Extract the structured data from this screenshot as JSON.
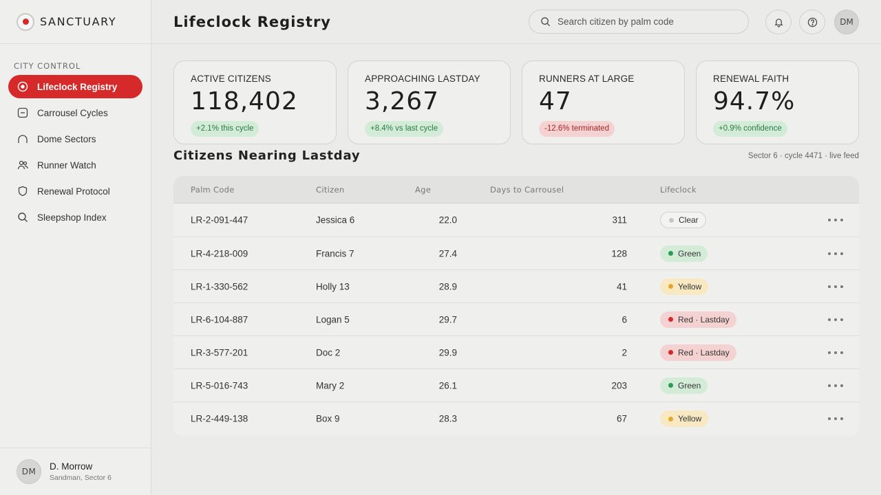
{
  "brand": {
    "name": "SANCTUARY"
  },
  "sidebar": {
    "section_label": "CITY CONTROL",
    "items": [
      {
        "label": "Lifeclock Registry",
        "icon": "target-icon",
        "active": true
      },
      {
        "label": "Carrousel Cycles",
        "icon": "minus-square-icon",
        "active": false
      },
      {
        "label": "Dome Sectors",
        "icon": "dome-icon",
        "active": false
      },
      {
        "label": "Runner Watch",
        "icon": "users-icon",
        "active": false
      },
      {
        "label": "Renewal Protocol",
        "icon": "shield-icon",
        "active": false
      },
      {
        "label": "Sleepshop Index",
        "icon": "search-icon",
        "active": false
      }
    ],
    "user": {
      "initials": "DM",
      "name": "D. Morrow",
      "role": "Sandman, Sector 6"
    }
  },
  "header": {
    "title": "Lifeclock Registry",
    "search_placeholder": "Search citizen by palm code",
    "avatar_initials": "DM"
  },
  "stats": [
    {
      "label": "ACTIVE CITIZENS",
      "value": "118,402",
      "delta": "+2.1% this cycle",
      "trend": "good"
    },
    {
      "label": "APPROACHING LASTDAY",
      "value": "3,267",
      "delta": "+8.4% vs last cycle",
      "trend": "good"
    },
    {
      "label": "RUNNERS AT LARGE",
      "value": "47",
      "delta": "-12.6% terminated",
      "trend": "bad"
    },
    {
      "label": "RENEWAL FAITH",
      "value": "94.7%",
      "delta": "+0.9% confidence",
      "trend": "good"
    }
  ],
  "section": {
    "title": "Citizens Nearing Lastday",
    "meta": "Sector 6 · cycle 4471 · live feed"
  },
  "table": {
    "columns": [
      "Palm Code",
      "Citizen",
      "Age",
      "Days to Carrousel",
      "Lifeclock"
    ],
    "rows": [
      {
        "code": "LR-2-091-447",
        "citizen": "Jessica 6",
        "age": "22.0",
        "days": "311",
        "status": "Clear",
        "tone": "clear"
      },
      {
        "code": "LR-4-218-009",
        "citizen": "Francis 7",
        "age": "27.4",
        "days": "128",
        "status": "Green",
        "tone": "green"
      },
      {
        "code": "LR-1-330-562",
        "citizen": "Holly 13",
        "age": "28.9",
        "days": "41",
        "status": "Yellow",
        "tone": "yellow"
      },
      {
        "code": "LR-6-104-887",
        "citizen": "Logan 5",
        "age": "29.7",
        "days": "6",
        "status": "Red · Lastday",
        "tone": "red"
      },
      {
        "code": "LR-3-577-201",
        "citizen": "Doc 2",
        "age": "29.9",
        "days": "2",
        "status": "Red · Lastday",
        "tone": "red"
      },
      {
        "code": "LR-5-016-743",
        "citizen": "Mary 2",
        "age": "26.1",
        "days": "203",
        "status": "Green",
        "tone": "green"
      },
      {
        "code": "LR-2-449-138",
        "citizen": "Box 9",
        "age": "28.3",
        "days": "67",
        "status": "Yellow",
        "tone": "yellow"
      }
    ]
  },
  "colors": {
    "accent": "#d62a2a",
    "good": "#2f9a52",
    "warn": "#e2a92a"
  }
}
